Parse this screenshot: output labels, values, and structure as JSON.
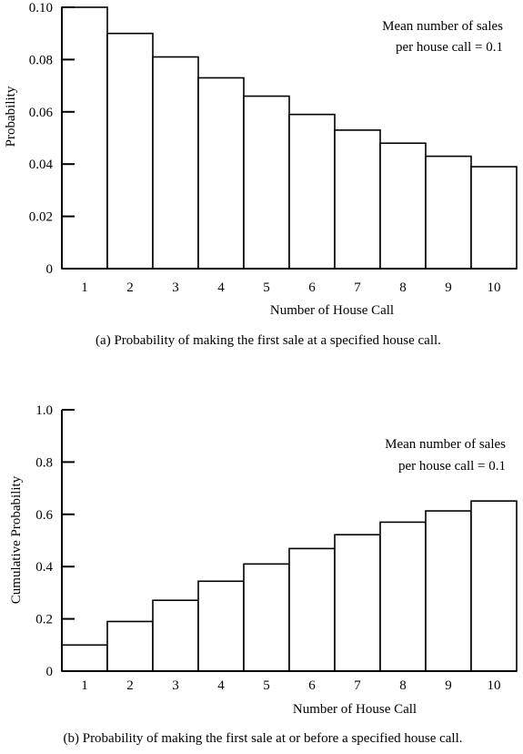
{
  "chart_data": [
    {
      "type": "bar",
      "categories": [
        "1",
        "2",
        "3",
        "4",
        "5",
        "6",
        "7",
        "8",
        "9",
        "10"
      ],
      "values": [
        0.1,
        0.09,
        0.081,
        0.073,
        0.066,
        0.059,
        0.053,
        0.048,
        0.043,
        0.039
      ],
      "ylabel": "Probability",
      "xlabel": "Number of House Call",
      "ylim": [
        0,
        0.1
      ],
      "yticks": [
        "0",
        "0.02",
        "0.04",
        "0.06",
        "0.08",
        "0.10"
      ],
      "annotation": [
        "Mean number of sales",
        "per house call = 0.1"
      ],
      "caption": "(a) Probability of making the first sale at a specified house call.",
      "legend": "none",
      "grid": false
    },
    {
      "type": "bar",
      "categories": [
        "1",
        "2",
        "3",
        "4",
        "5",
        "6",
        "7",
        "8",
        "9",
        "10"
      ],
      "values": [
        0.1,
        0.19,
        0.271,
        0.344,
        0.41,
        0.469,
        0.522,
        0.57,
        0.613,
        0.651
      ],
      "ylabel": "Cumulative Probability",
      "xlabel": "Number of House Call",
      "ylim": [
        0,
        1.0
      ],
      "yticks": [
        "0",
        "0.2",
        "0.4",
        "0.6",
        "0.8",
        "1.0"
      ],
      "annotation": [
        "Mean number of sales",
        "per house call = 0.1"
      ],
      "caption": "(b) Probability of making the first sale at or before a specified house call.",
      "legend": "none",
      "grid": false
    }
  ]
}
